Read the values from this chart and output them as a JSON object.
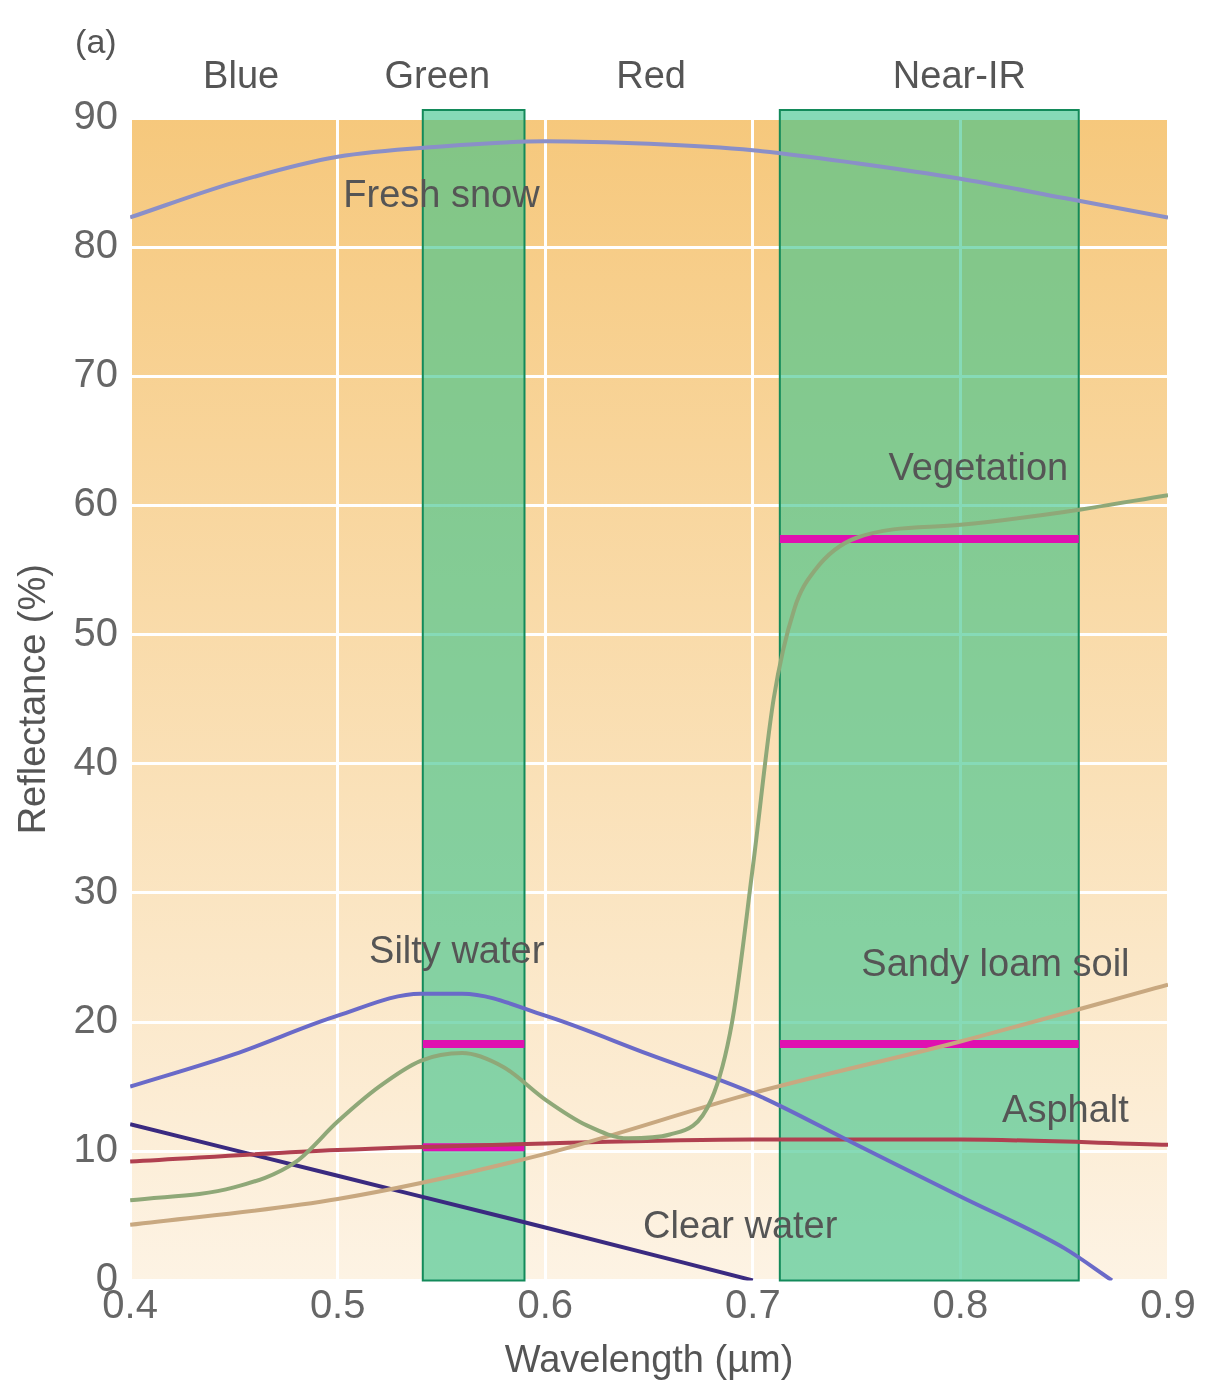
{
  "chart_data": {
    "type": "line",
    "xlabel": "Wavelength (µm)",
    "ylabel": "Reflectance (%)",
    "annotations": [
      "(a)",
      "Blue",
      "Green",
      "Red",
      "Near-IR"
    ],
    "xlim": [
      0.4,
      0.9
    ],
    "xticks": [
      0.4,
      0.5,
      0.6,
      0.7,
      0.8,
      0.9
    ],
    "ylim": [
      0,
      90
    ],
    "yticks": [
      0,
      10,
      20,
      30,
      40,
      50,
      60,
      70,
      80,
      90
    ],
    "grid": true,
    "legend": false,
    "marker": "none",
    "line_style": "solid",
    "bands": [
      {
        "axis": "x",
        "from": 0.541,
        "to": 0.59,
        "color": "#3cc48a"
      },
      {
        "axis": "x",
        "from": 0.713,
        "to": 0.857,
        "color": "#3cc48a"
      }
    ],
    "series": [
      {
        "name": "Fresh snow",
        "color": "#8a8fc8",
        "x": [
          0.4,
          0.45,
          0.5,
          0.55,
          0.6,
          0.65,
          0.7,
          0.75,
          0.8,
          0.85,
          0.9
        ],
        "values": [
          82.3,
          85,
          87,
          87.8,
          88.2,
          88,
          87.5,
          86.5,
          85.3,
          83.8,
          82.3
        ]
      },
      {
        "name": "Vegetation",
        "color": "#8fa878",
        "x": [
          0.4,
          0.45,
          0.48,
          0.5,
          0.52,
          0.54,
          0.56,
          0.58,
          0.6,
          0.62,
          0.64,
          0.66,
          0.68,
          0.69,
          0.7,
          0.71,
          0.72,
          0.73,
          0.75,
          0.8,
          0.85,
          0.9
        ],
        "values": [
          6.2,
          7.2,
          9.2,
          12.3,
          15,
          17,
          17.6,
          16.5,
          14,
          12,
          11,
          11.3,
          14,
          20,
          32,
          45,
          52,
          55,
          57.5,
          58.5,
          59.5,
          60.8
        ]
      },
      {
        "name": "Silty water",
        "color": "#6a6ac8",
        "x": [
          0.4,
          0.45,
          0.5,
          0.54,
          0.56,
          0.6,
          0.65,
          0.7,
          0.75,
          0.8,
          0.85,
          0.873
        ],
        "values": [
          15,
          17.5,
          20.5,
          22.2,
          22.2,
          20.5,
          17.5,
          14.5,
          10.5,
          6.5,
          2.5,
          0
        ]
      },
      {
        "name": "Sandy loam soil",
        "color": "#c8a880",
        "x": [
          0.4,
          0.5,
          0.6,
          0.7,
          0.8,
          0.9
        ],
        "values": [
          4.3,
          6.3,
          9.8,
          14.5,
          18.5,
          22.9
        ]
      },
      {
        "name": "Asphalt",
        "color": "#b04050",
        "x": [
          0.4,
          0.5,
          0.6,
          0.7,
          0.8,
          0.9
        ],
        "values": [
          9.2,
          10.1,
          10.6,
          10.9,
          10.9,
          10.5
        ]
      },
      {
        "name": "Clear water",
        "color": "#3a2a80",
        "x": [
          0.4,
          0.5,
          0.6,
          0.7
        ],
        "values": [
          12.1,
          8.1,
          4.1,
          0
        ]
      },
      {
        "color": "#e010b0",
        "x": [
          0.541,
          0.59
        ],
        "values": [
          18.3,
          18.3
        ]
      },
      {
        "color": "#e010b0",
        "x": [
          0.541,
          0.59
        ],
        "values": [
          10.3,
          10.3
        ]
      },
      {
        "color": "#e010b0",
        "x": [
          0.713,
          0.857
        ],
        "values": [
          18.3,
          18.3
        ]
      },
      {
        "color": "#e010b0",
        "x": [
          0.713,
          0.857
        ],
        "values": [
          57.4,
          57.4
        ]
      }
    ]
  }
}
